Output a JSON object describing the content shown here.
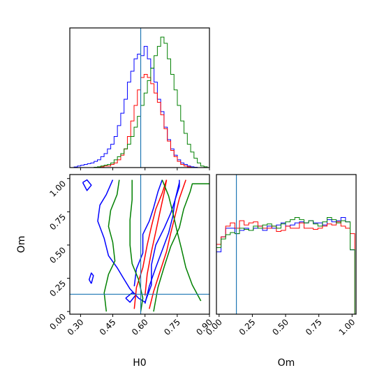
{
  "chart_data": {
    "type": "corner",
    "parameters": [
      "H0",
      "Om"
    ],
    "axis_labels": {
      "H0": "H0",
      "Om": "Om"
    },
    "truth_lines": {
      "H0": 0.58,
      "Om": 0.13,
      "color": "#1f77b4"
    },
    "ranges": {
      "H0": [
        0.25,
        0.9
      ],
      "Om": [
        -0.02,
        1.03
      ]
    },
    "ticks": {
      "H0": [
        "0.30",
        "0.45",
        "0.60",
        "0.75",
        "0.90"
      ],
      "Om": [
        "0.00",
        "0.25",
        "0.50",
        "0.75",
        "1.00"
      ]
    },
    "series": [
      {
        "color": "#0000ff",
        "hist_H0": {
          "edges_range": [
            0.27,
            0.89
          ],
          "counts": [
            0.4,
            1,
            1.5,
            2,
            2.5,
            3,
            4,
            5,
            7,
            9,
            12,
            15,
            20,
            27,
            35,
            44,
            55,
            62,
            70,
            73,
            72,
            78,
            70,
            64,
            55,
            44,
            36,
            26,
            18,
            12,
            8,
            5,
            3,
            2,
            1,
            0.5,
            0.2,
            0,
            0,
            0
          ]
        },
        "hist_Om": {
          "edges_range": [
            -0.02,
            1.02
          ],
          "counts": [
            0.58,
            0.72,
            0.8,
            0.8,
            0.75,
            0.78,
            0.8,
            0.78,
            0.8,
            0.82,
            0.78,
            0.82,
            0.8,
            0.83,
            0.85,
            0.82,
            0.83,
            0.85,
            0.86,
            0.85,
            0.87,
            0.85,
            0.85,
            0.83,
            0.88,
            0.86,
            0.87,
            0.9,
            0.86,
            0.6
          ]
        },
        "contours": [
          [
            [
              0.31,
              0.97
            ],
            [
              0.33,
              0.91
            ],
            [
              0.35,
              0.95
            ],
            [
              0.33,
              0.99
            ],
            [
              0.31,
              0.97
            ]
          ],
          [
            [
              0.45,
              0.99
            ],
            [
              0.42,
              0.88
            ],
            [
              0.39,
              0.8
            ],
            [
              0.38,
              0.68
            ],
            [
              0.41,
              0.55
            ],
            [
              0.43,
              0.42
            ],
            [
              0.47,
              0.33
            ],
            [
              0.5,
              0.25
            ],
            [
              0.53,
              0.17
            ],
            [
              0.57,
              0.1
            ],
            [
              0.6,
              0.07
            ],
            [
              0.63,
              0.2
            ],
            [
              0.63,
              0.35
            ],
            [
              0.65,
              0.5
            ],
            [
              0.69,
              0.63
            ],
            [
              0.72,
              0.74
            ],
            [
              0.74,
              0.84
            ],
            [
              0.76,
              0.94
            ],
            [
              0.76,
              0.99
            ]
          ],
          [
            [
              0.55,
              0.19
            ],
            [
              0.56,
              0.32
            ],
            [
              0.59,
              0.44
            ],
            [
              0.59,
              0.58
            ],
            [
              0.62,
              0.68
            ],
            [
              0.64,
              0.78
            ],
            [
              0.66,
              0.9
            ],
            [
              0.68,
              0.99
            ]
          ],
          [
            [
              0.6,
              0.06
            ],
            [
              0.62,
              0.19
            ],
            [
              0.65,
              0.33
            ],
            [
              0.68,
              0.46
            ],
            [
              0.71,
              0.59
            ],
            [
              0.73,
              0.72
            ],
            [
              0.74,
              0.84
            ],
            [
              0.76,
              0.97
            ]
          ],
          [
            [
              0.35,
              0.21
            ],
            [
              0.36,
              0.27
            ],
            [
              0.35,
              0.29
            ],
            [
              0.34,
              0.24
            ],
            [
              0.35,
              0.21
            ]
          ],
          [
            [
              0.51,
              0.1
            ],
            [
              0.53,
              0.07
            ],
            [
              0.56,
              0.13
            ],
            [
              0.54,
              0.14
            ],
            [
              0.51,
              0.1
            ]
          ]
        ]
      },
      {
        "color": "#ff0000",
        "hist_H0": {
          "edges_range": [
            0.27,
            0.89
          ],
          "counts": [
            0,
            0,
            0,
            0,
            0,
            0,
            0,
            0.2,
            0.5,
            1,
            1,
            2,
            3,
            5,
            8,
            12,
            20,
            30,
            40,
            50,
            58,
            60,
            58,
            54,
            48,
            42,
            34,
            25,
            17,
            11,
            7,
            4,
            2,
            1,
            0.5,
            0,
            0,
            0,
            0,
            0
          ]
        },
        "hist_Om": {
          "edges_range": [
            -0.02,
            1.02
          ],
          "counts": [
            0.65,
            0.72,
            0.82,
            0.85,
            0.8,
            0.87,
            0.83,
            0.85,
            0.86,
            0.82,
            0.8,
            0.8,
            0.82,
            0.77,
            0.78,
            0.82,
            0.8,
            0.8,
            0.85,
            0.8,
            0.8,
            0.79,
            0.8,
            0.82,
            0.84,
            0.83,
            0.86,
            0.82,
            0.8,
            0.75
          ]
        },
        "contours": [
          [
            [
              0.55,
              0.02
            ],
            [
              0.56,
              0.18
            ],
            [
              0.59,
              0.33
            ],
            [
              0.61,
              0.5
            ],
            [
              0.63,
              0.64
            ],
            [
              0.65,
              0.77
            ],
            [
              0.68,
              0.89
            ],
            [
              0.7,
              0.99
            ]
          ],
          [
            [
              0.62,
              0.02
            ],
            [
              0.64,
              0.15
            ],
            [
              0.67,
              0.3
            ],
            [
              0.7,
              0.45
            ],
            [
              0.72,
              0.59
            ],
            [
              0.74,
              0.72
            ],
            [
              0.76,
              0.85
            ],
            [
              0.79,
              0.99
            ]
          ],
          [
            [
              0.6,
              0.12
            ],
            [
              0.61,
              0.28
            ],
            [
              0.63,
              0.45
            ],
            [
              0.65,
              0.6
            ],
            [
              0.67,
              0.75
            ],
            [
              0.69,
              0.9
            ],
            [
              0.7,
              0.99
            ]
          ]
        ]
      },
      {
        "color": "#008000",
        "hist_H0": {
          "edges_range": [
            0.27,
            0.89
          ],
          "counts": [
            0,
            0,
            0,
            0,
            0,
            0,
            0.2,
            0.5,
            1,
            1.5,
            2,
            3,
            5,
            7,
            9,
            12,
            15,
            20,
            26,
            33,
            40,
            48,
            56,
            64,
            72,
            78,
            84,
            80,
            70,
            60,
            50,
            40,
            30,
            22,
            15,
            10,
            6,
            3,
            1,
            0.5
          ]
        },
        "hist_Om": {
          "edges_range": [
            -0.02,
            1.02
          ],
          "counts": [
            0.62,
            0.7,
            0.74,
            0.76,
            0.75,
            0.8,
            0.79,
            0.78,
            0.82,
            0.8,
            0.83,
            0.84,
            0.82,
            0.8,
            0.84,
            0.86,
            0.88,
            0.9,
            0.88,
            0.85,
            0.87,
            0.84,
            0.82,
            0.86,
            0.9,
            0.88,
            0.85,
            0.87,
            0.86,
            0.6
          ]
        },
        "contours": [
          [
            [
              0.48,
              0.99
            ],
            [
              0.47,
              0.88
            ],
            [
              0.44,
              0.76
            ],
            [
              0.43,
              0.64
            ],
            [
              0.45,
              0.52
            ],
            [
              0.46,
              0.38
            ],
            [
              0.43,
              0.28
            ],
            [
              0.41,
              0.14
            ],
            [
              0.42,
              0.0
            ]
          ],
          [
            [
              0.54,
              0.99
            ],
            [
              0.54,
              0.84
            ],
            [
              0.53,
              0.69
            ],
            [
              0.53,
              0.5
            ],
            [
              0.54,
              0.36
            ],
            [
              0.57,
              0.24
            ],
            [
              0.59,
              0.1
            ],
            [
              0.58,
              0.0
            ]
          ],
          [
            [
              0.64,
              0.0
            ],
            [
              0.66,
              0.18
            ],
            [
              0.69,
              0.34
            ],
            [
              0.72,
              0.49
            ],
            [
              0.76,
              0.63
            ],
            [
              0.78,
              0.77
            ],
            [
              0.81,
              0.9
            ],
            [
              0.82,
              0.96
            ],
            [
              0.9,
              0.96
            ]
          ],
          [
            [
              0.68,
              0.99
            ],
            [
              0.71,
              0.87
            ],
            [
              0.73,
              0.74
            ],
            [
              0.75,
              0.6
            ],
            [
              0.77,
              0.47
            ],
            [
              0.79,
              0.33
            ],
            [
              0.82,
              0.2
            ],
            [
              0.86,
              0.08
            ]
          ]
        ]
      }
    ]
  }
}
